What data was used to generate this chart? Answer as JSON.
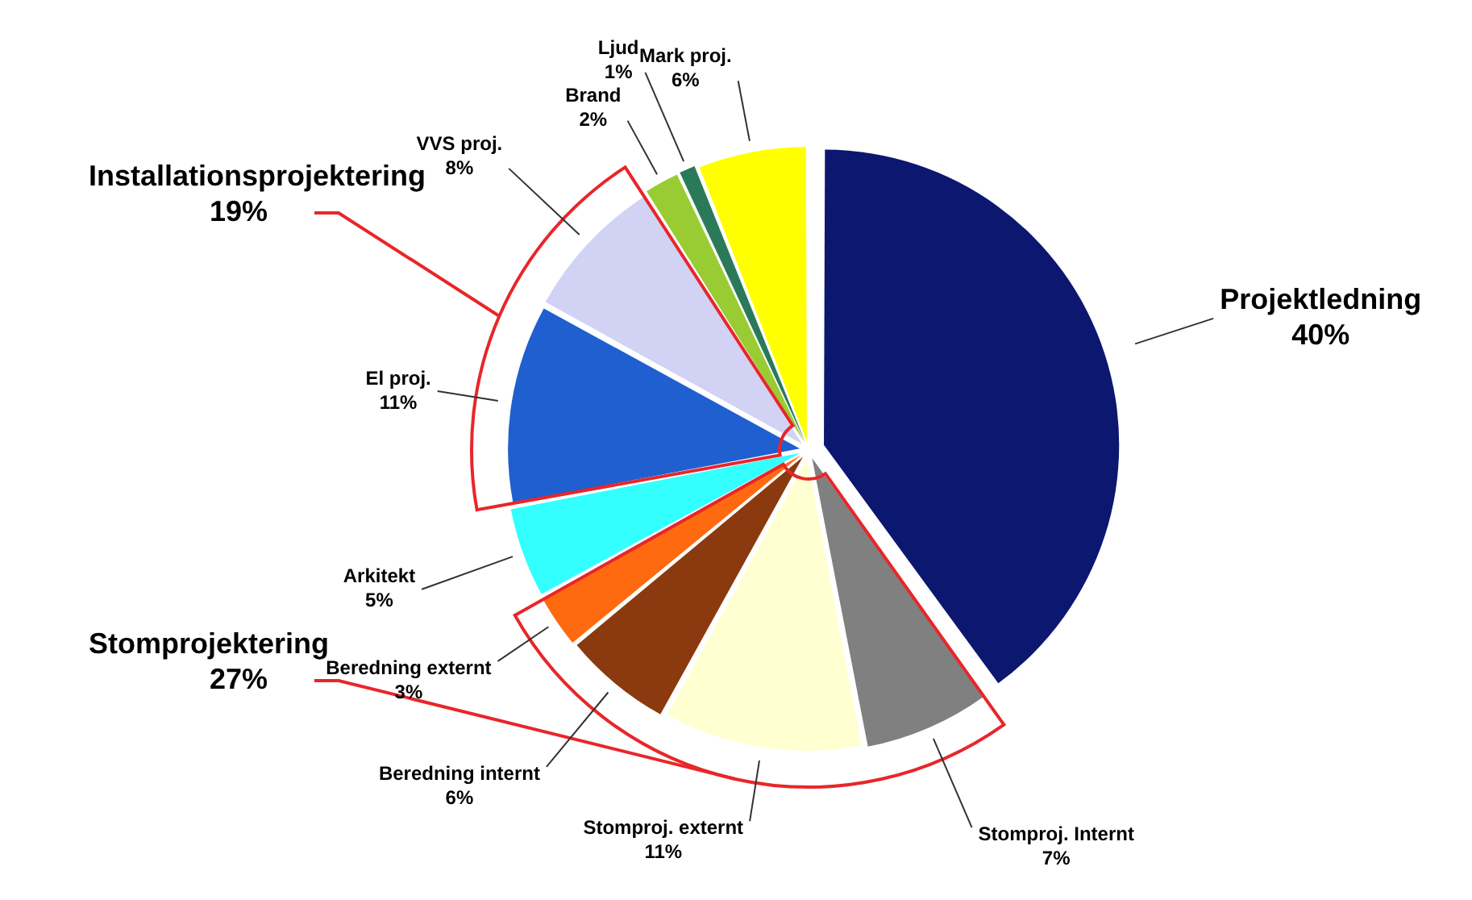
{
  "chart_data": {
    "type": "pie",
    "categories": [
      "Projektledning",
      "Stomproj. Internt",
      "Stomproj. externt",
      "Beredning internt",
      "Beredning externt",
      "Arkitekt",
      "El proj.",
      "VVS proj.",
      "Brand",
      "Ljud",
      "Mark proj."
    ],
    "values": [
      40,
      7,
      11,
      6,
      3,
      5,
      11,
      8,
      2,
      1,
      6
    ],
    "value_labels": [
      "40%",
      "7%",
      "11%",
      "6%",
      "3%",
      "5%",
      "11%",
      "8%",
      "2%",
      "1%",
      "6%"
    ],
    "colors": [
      "#0c1770",
      "#808080",
      "#ffffd2",
      "#8a3a0e",
      "#ff6a10",
      "#33ffff",
      "#1f5fcf",
      "#d2d2f5",
      "#99cc33",
      "#2a7a5a",
      "#ffff00"
    ],
    "annotations": [
      "Stomprojektering\n27%",
      "Installationsprojektering\n19%"
    ],
    "legend": false
  }
}
